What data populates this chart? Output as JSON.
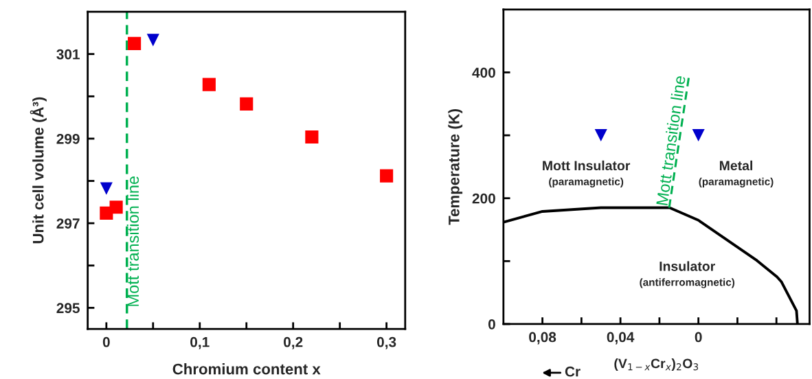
{
  "chart_data": [
    {
      "type": "scatter",
      "xlabel": "Chromium content x",
      "ylabel": "Unit cell volume (Å³)",
      "xlim": [
        -0.02,
        0.32
      ],
      "xticks": [
        0,
        {
          "value": 0.05,
          "label": null
        },
        {
          "value": 0.1,
          "label": "0,1"
        },
        {
          "value": 0.15,
          "label": null
        },
        {
          "value": 0.2,
          "label": "0,2"
        },
        {
          "value": 0.25,
          "label": null
        },
        {
          "value": 0.3,
          "label": "0,3"
        }
      ],
      "ylim": [
        294.5,
        302
      ],
      "yticks": [
        295,
        {
          "value": 296,
          "label": null
        },
        297,
        {
          "value": 298,
          "label": null
        },
        299,
        {
          "value": 300,
          "label": null
        },
        301
      ],
      "series": [
        {
          "marker": "square",
          "color": "#ff0000",
          "x": [
            0,
            0.0105,
            0.03,
            0.11,
            0.15,
            0.22,
            0.3
          ],
          "values": [
            297.24,
            297.38,
            301.25,
            300.28,
            299.82,
            299.04,
            298.12
          ]
        },
        {
          "marker": "triangle",
          "color": "#0000cc",
          "x": [
            0,
            0.05
          ],
          "values": [
            297.82,
            301.33
          ]
        }
      ],
      "ref_lines": [
        {
          "axis": "x",
          "value": 0.022,
          "label": "Mott transition line",
          "color": "#00b050",
          "line_style": "dashed"
        }
      ],
      "grid": false,
      "legend": false
    },
    {
      "type": "line",
      "xlabel": "(V$_{1−x}$Cr$_{x}$)$_{2}$O$_{3}$",
      "ylabel": "Temperature (K)",
      "xlim": [
        0.1,
        -0.057
      ],
      "xticks": [
        {
          "value": 0.08,
          "label": "0,08"
        },
        {
          "value": 0.06,
          "label": null
        },
        {
          "value": 0.04,
          "label": "0,04"
        },
        {
          "value": 0.02,
          "label": null
        },
        0,
        {
          "value": -0.02,
          "label": null
        },
        {
          "value": -0.04,
          "label": null
        }
      ],
      "ylim": [
        0,
        500
      ],
      "yticks": [
        0,
        {
          "value": 100,
          "label": null
        },
        200,
        {
          "value": 300,
          "label": null
        },
        400
      ],
      "series": [
        {
          "color": "#000000",
          "line_style": "solid",
          "marker": "none",
          "x": [
            0.1,
            0.08,
            0.05,
            0.0148,
            0,
            -0.03,
            -0.0403,
            -0.0426,
            -0.0503,
            -0.0508
          ],
          "values": [
            162,
            179,
            185,
            185,
            165,
            101,
            75,
            67,
            21,
            0
          ]
        },
        {
          "name": "Mott transition line",
          "color": "#00b050",
          "line_style": "dashed",
          "marker": "none",
          "x": [
            0.015,
            0.0049
          ],
          "values": [
            185,
            393
          ]
        },
        {
          "type": "scatter",
          "marker": "triangle",
          "color": "#0000cc",
          "x": [
            0.05,
            0
          ],
          "values": [
            300,
            300
          ]
        }
      ],
      "annotations": [
        "Mott Insulator",
        "(paramagnetic)",
        "Metal",
        "(paramagnetic)",
        "Insulator",
        "(antiferromagnetic)",
        "Cr"
      ],
      "grid": false,
      "legend": false
    }
  ]
}
